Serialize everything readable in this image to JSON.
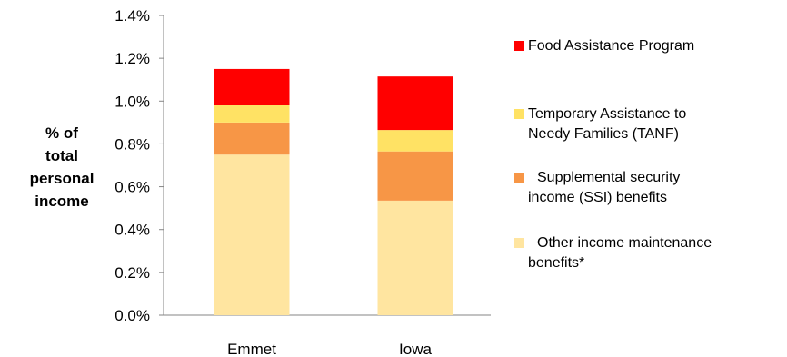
{
  "chart_data": {
    "type": "bar",
    "stacked": true,
    "categories": [
      "Emmet",
      "Iowa"
    ],
    "ylabel_lines": [
      "% of",
      "total",
      "personal",
      "income"
    ],
    "ylim": [
      0,
      1.4
    ],
    "yticks": [
      "0.0%",
      "0.2%",
      "0.4%",
      "0.6%",
      "0.8%",
      "1.0%",
      "1.2%",
      "1.4%"
    ],
    "ytick_values": [
      0,
      0.2,
      0.4,
      0.6,
      0.8,
      1.0,
      1.2,
      1.4
    ],
    "series": [
      {
        "name": "Other income maintenance\nbenefits*",
        "color": "#FFE5A0",
        "values": [
          0.75,
          0.535
        ]
      },
      {
        "name": "Supplemental security\nincome (SSI) benefits",
        "color": "#F79646",
        "values": [
          0.15,
          0.23
        ]
      },
      {
        "name": "Temporary Assistance to\nNeedy Families (TANF)",
        "color": "#FFE264",
        "values": [
          0.08,
          0.1
        ]
      },
      {
        "name": "Food Assistance Program",
        "color": "#FF0000",
        "values": [
          0.17,
          0.25
        ]
      }
    ],
    "legend_position": "right",
    "grid": false
  }
}
